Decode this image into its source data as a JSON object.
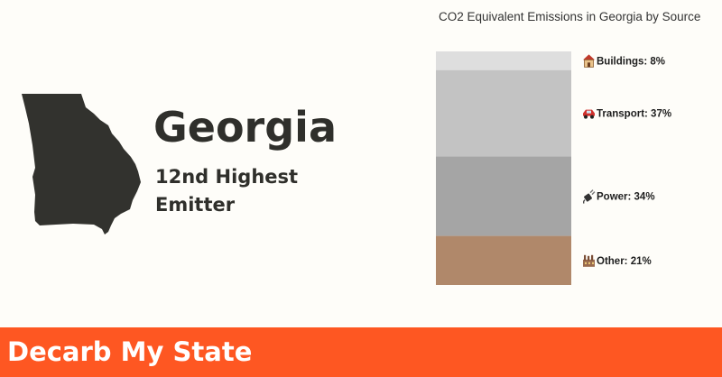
{
  "state": {
    "name": "Georgia",
    "rank_line1": "12nd Highest",
    "rank_line2": "Emitter",
    "shape_icon": "georgia-state-silhouette",
    "color": "#32322e"
  },
  "chart_data": {
    "type": "bar",
    "stacked": true,
    "orientation": "vertical",
    "title": "CO2 Equivalent Emissions in Georgia by Source",
    "unit": "%",
    "categories": [
      "Buildings",
      "Transport",
      "Power",
      "Other"
    ],
    "values": [
      8,
      37,
      34,
      21
    ],
    "labels": [
      "Buildings: 8%",
      "Transport: 37%",
      "Power: 34%",
      "Other: 21%"
    ],
    "icons": [
      "house-icon",
      "car-icon",
      "plug-icon",
      "factory-icon"
    ],
    "colors": [
      "#dedede",
      "#c3c3c3",
      "#a5a5a5",
      "#b0886a"
    ]
  },
  "footer": {
    "brand": "Decarb My State",
    "color": "#fe5722"
  }
}
